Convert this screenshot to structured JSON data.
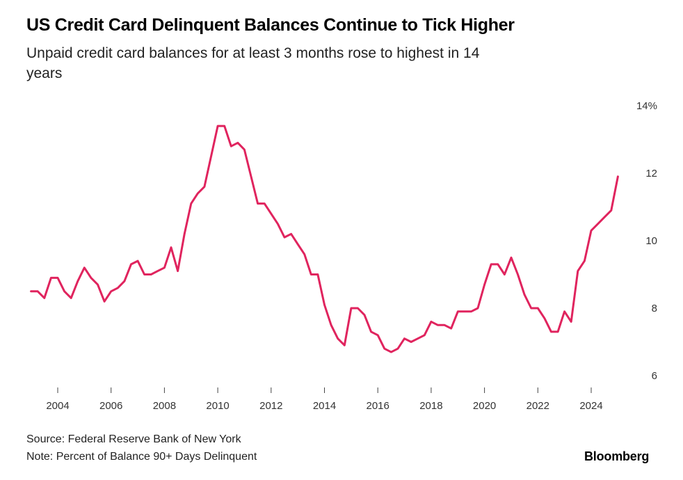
{
  "header": {
    "title": "US Credit Card Delinquent Balances Continue to Tick Higher",
    "subtitle": "Unpaid credit card balances for at least 3 months rose to highest in 14 years"
  },
  "footer": {
    "source": "Source: Federal Reserve Bank of New York",
    "note": "Note: Percent of Balance 90+ Days Delinquent",
    "brand": "Bloomberg"
  },
  "chart_data": {
    "type": "line",
    "title": "US Credit Card Delinquent Balances Continue to Tick Higher",
    "subtitle": "Unpaid credit card balances for at least 3 months rose to highest in 14 years",
    "xlabel": "",
    "ylabel": "",
    "xlim": [
      2003.0,
      2025.5
    ],
    "ylim": [
      6,
      14
    ],
    "y_axis_position": "right",
    "grid": false,
    "legend": "none",
    "line_color": "#e0245e",
    "x_ticks": [
      2004,
      2006,
      2008,
      2010,
      2012,
      2014,
      2016,
      2018,
      2020,
      2022,
      2024
    ],
    "x_tick_labels": [
      "2004",
      "2006",
      "2008",
      "2010",
      "2012",
      "2014",
      "2016",
      "2018",
      "2020",
      "2022",
      "2024"
    ],
    "y_ticks": [
      6,
      8,
      10,
      12,
      14
    ],
    "y_tick_labels": [
      "6",
      "8",
      "10",
      "12",
      "14%"
    ],
    "series": [
      {
        "x": [
          2003.0,
          2003.25,
          2003.5,
          2003.75,
          2004.0,
          2004.25,
          2004.5,
          2004.75,
          2005.0,
          2005.25,
          2005.5,
          2005.75,
          2006.0,
          2006.25,
          2006.5,
          2006.75,
          2007.0,
          2007.25,
          2007.5,
          2007.75,
          2008.0,
          2008.25,
          2008.5,
          2008.75,
          2009.0,
          2009.25,
          2009.5,
          2009.75,
          2010.0,
          2010.25,
          2010.5,
          2010.75,
          2011.0,
          2011.25,
          2011.5,
          2011.75,
          2012.0,
          2012.25,
          2012.5,
          2012.75,
          2013.0,
          2013.25,
          2013.5,
          2013.75,
          2014.0,
          2014.25,
          2014.5,
          2014.75,
          2015.0,
          2015.25,
          2015.5,
          2015.75,
          2016.0,
          2016.25,
          2016.5,
          2016.75,
          2017.0,
          2017.25,
          2017.5,
          2017.75,
          2018.0,
          2018.25,
          2018.5,
          2018.75,
          2019.0,
          2019.25,
          2019.5,
          2019.75,
          2020.0,
          2020.25,
          2020.5,
          2020.75,
          2021.0,
          2021.25,
          2021.5,
          2021.75,
          2022.0,
          2022.25,
          2022.5,
          2022.75,
          2023.0,
          2023.25,
          2023.5,
          2023.75,
          2024.0,
          2024.25,
          2024.5,
          2024.75,
          2025.0
        ],
        "y": [
          8.5,
          8.5,
          8.3,
          8.9,
          8.9,
          8.5,
          8.3,
          8.8,
          9.2,
          8.9,
          8.7,
          8.2,
          8.5,
          8.6,
          8.8,
          9.3,
          9.4,
          9.0,
          9.0,
          9.1,
          9.2,
          9.8,
          9.1,
          10.2,
          11.1,
          11.4,
          11.6,
          12.5,
          13.4,
          13.4,
          12.8,
          12.9,
          12.7,
          11.9,
          11.1,
          11.1,
          10.8,
          10.5,
          10.1,
          10.2,
          9.9,
          9.6,
          9.0,
          9.0,
          8.1,
          7.5,
          7.1,
          6.9,
          8.0,
          8.0,
          7.8,
          7.3,
          7.2,
          6.8,
          6.7,
          6.8,
          7.1,
          7.0,
          7.1,
          7.2,
          7.6,
          7.5,
          7.5,
          7.4,
          7.9,
          7.9,
          7.9,
          8.0,
          8.7,
          9.3,
          9.3,
          9.0,
          9.5,
          9.0,
          8.4,
          8.0,
          8.0,
          7.7,
          7.3,
          7.3,
          7.9,
          7.6,
          9.1,
          9.4,
          10.3,
          10.5,
          10.7,
          10.9,
          11.9
        ]
      }
    ]
  }
}
